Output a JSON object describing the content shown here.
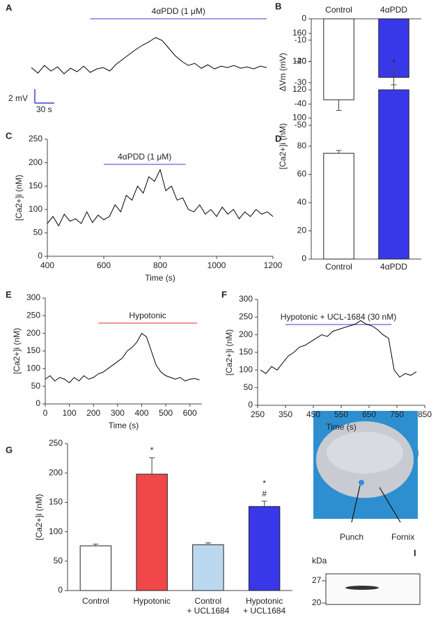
{
  "chart_data": [
    {
      "type": "line",
      "panel": "A",
      "x": [
        0,
        10,
        20,
        30,
        40,
        50,
        60,
        70,
        80,
        90,
        100,
        110,
        120,
        130,
        140,
        150,
        160,
        170,
        180,
        190,
        200,
        210,
        220,
        230,
        240,
        250,
        260,
        270,
        280,
        290,
        300,
        310,
        320,
        330,
        340,
        350,
        360
      ],
      "series": [
        {
          "color": "#000000",
          "values": [
            0.3,
            -0.5,
            0.6,
            -0.2,
            0.4,
            -0.6,
            0.2,
            -0.3,
            0.5,
            -0.4,
            0.1,
            0.3,
            -0.2,
            0.8,
            1.5,
            2.2,
            2.9,
            3.5,
            4.0,
            4.6,
            4.2,
            3.1,
            2.0,
            1.2,
            0.6,
            0.9,
            0.2,
            0.7,
            0.1,
            0.5,
            0.3,
            0.6,
            0.2,
            0.4,
            0.1,
            0.5,
            0.3
          ]
        }
      ],
      "stimulus": {
        "label": "4αPDD (1 μM)",
        "start": 90,
        "end": 360,
        "color": "#7b7be8"
      },
      "scalebar": {
        "y_label": "2 mV",
        "x_label": "30 s"
      }
    },
    {
      "type": "bar",
      "panel": "B",
      "categories": [
        "Control",
        "4αPDD"
      ],
      "values": [
        -38,
        -27.5
      ],
      "errors": [
        5,
        3.5
      ],
      "colors": [
        "#ffffff",
        "#3838e8"
      ],
      "ylabel": "ΔVm (mV)",
      "ylim": [
        -50,
        0
      ],
      "yticks": [
        0,
        -10,
        -20,
        -30,
        -40,
        -50
      ],
      "significance": [
        [],
        [
          "*"
        ]
      ]
    },
    {
      "type": "line",
      "panel": "C",
      "x": [
        400,
        420,
        440,
        460,
        480,
        500,
        520,
        540,
        560,
        580,
        600,
        620,
        640,
        660,
        680,
        700,
        720,
        740,
        760,
        780,
        800,
        820,
        840,
        860,
        880,
        900,
        920,
        940,
        960,
        980,
        1000,
        1020,
        1040,
        1060,
        1080,
        1100,
        1120,
        1140,
        1160,
        1180,
        1200
      ],
      "series": [
        {
          "color": "#000000",
          "values": [
            70,
            85,
            65,
            90,
            75,
            80,
            70,
            95,
            72,
            88,
            78,
            85,
            110,
            95,
            130,
            120,
            150,
            135,
            170,
            160,
            185,
            140,
            150,
            120,
            125,
            100,
            95,
            110,
            90,
            100,
            85,
            105,
            90,
            100,
            80,
            95,
            85,
            100,
            90,
            95,
            85
          ]
        }
      ],
      "xlabel": "Time (s)",
      "ylabel": "[Ca2+]i (nM)",
      "xlim": [
        400,
        1200
      ],
      "xticks": [
        400,
        600,
        800,
        1000,
        1200
      ],
      "ylim": [
        0,
        250
      ],
      "yticks": [
        0,
        50,
        100,
        150,
        200,
        250
      ],
      "stimulus": {
        "label": "4αPDD (1 μM)",
        "start": 600,
        "end": 890,
        "color": "#7b7be8"
      }
    },
    {
      "type": "bar",
      "panel": "D",
      "categories": [
        "Control",
        "4αPDD"
      ],
      "values": [
        75,
        120
      ],
      "errors": [
        2,
        14
      ],
      "colors": [
        "#ffffff",
        "#3838e8"
      ],
      "ylabel": "[Ca2+]i (nM)",
      "ylim": [
        0,
        160
      ],
      "yticks": [
        0,
        20,
        40,
        60,
        80,
        100,
        120,
        140,
        160
      ],
      "significance": [
        [],
        [
          "*"
        ]
      ]
    },
    {
      "type": "line",
      "panel": "E",
      "x": [
        0,
        20,
        40,
        60,
        80,
        100,
        120,
        140,
        160,
        180,
        200,
        220,
        240,
        260,
        280,
        300,
        320,
        340,
        360,
        380,
        400,
        420,
        440,
        460,
        480,
        500,
        520,
        540,
        560,
        580,
        600,
        620,
        640
      ],
      "series": [
        {
          "color": "#000000",
          "values": [
            70,
            80,
            65,
            75,
            70,
            60,
            75,
            65,
            80,
            70,
            75,
            85,
            90,
            100,
            110,
            120,
            130,
            150,
            160,
            175,
            200,
            190,
            150,
            110,
            90,
            80,
            75,
            70,
            75,
            65,
            70,
            72,
            68
          ]
        }
      ],
      "xlabel": "Time (s)",
      "ylabel": "[Ca2+]i (nM)",
      "xlim": [
        0,
        650
      ],
      "xticks": [
        0,
        100,
        200,
        300,
        400,
        500,
        600
      ],
      "ylim": [
        0,
        300
      ],
      "yticks": [
        0,
        50,
        100,
        150,
        200,
        250,
        300
      ],
      "stimulus": {
        "label": "Hypotonic",
        "start": 220,
        "end": 630,
        "color": "#f07070"
      }
    },
    {
      "type": "line",
      "panel": "F",
      "x": [
        260,
        280,
        300,
        320,
        340,
        360,
        380,
        400,
        420,
        440,
        460,
        480,
        500,
        520,
        540,
        560,
        580,
        600,
        620,
        640,
        660,
        680,
        700,
        720,
        740,
        760,
        780,
        800,
        820
      ],
      "series": [
        {
          "color": "#000000",
          "values": [
            100,
            90,
            110,
            100,
            120,
            140,
            150,
            165,
            170,
            180,
            190,
            200,
            195,
            210,
            215,
            220,
            225,
            230,
            240,
            230,
            225,
            215,
            200,
            190,
            100,
            80,
            90,
            85,
            95
          ]
        }
      ],
      "xlabel": "Time (s)",
      "ylabel": "[Ca2+]i (nM)",
      "xlim": [
        250,
        850
      ],
      "xticks": [
        250,
        350,
        450,
        550,
        650,
        750,
        850
      ],
      "ylim": [
        0,
        300
      ],
      "yticks": [
        0,
        50,
        100,
        150,
        200,
        250,
        300
      ],
      "stimulus": {
        "label": "Hypotonic + UCL-1684 (30 nM)",
        "start": 350,
        "end": 730,
        "color": "#7b7be8"
      }
    },
    {
      "type": "bar",
      "panel": "G",
      "categories": [
        [
          "Control"
        ],
        [
          "Hypotonic"
        ],
        [
          "Control",
          "+ UCL1684"
        ],
        [
          "Hypotonic",
          "+ UCL1684"
        ]
      ],
      "values": [
        76,
        198,
        78,
        143
      ],
      "errors": [
        3,
        28,
        3,
        9
      ],
      "colors": [
        "#ffffff",
        "#f04848",
        "#bcd8ee",
        "#3838e8"
      ],
      "ylabel": "[Ca2+]i (nM)",
      "ylim": [
        0,
        250
      ],
      "yticks": [
        0,
        50,
        100,
        150,
        200,
        250
      ],
      "significance": [
        [],
        [
          "*"
        ],
        [],
        [
          "*",
          "#"
        ]
      ]
    }
  ],
  "panel_h": {
    "panel": "H",
    "labels": [
      "Punch",
      "Fornix"
    ]
  },
  "panel_i": {
    "panel": "I",
    "unit": "kDa",
    "markers": [
      27,
      20
    ]
  }
}
